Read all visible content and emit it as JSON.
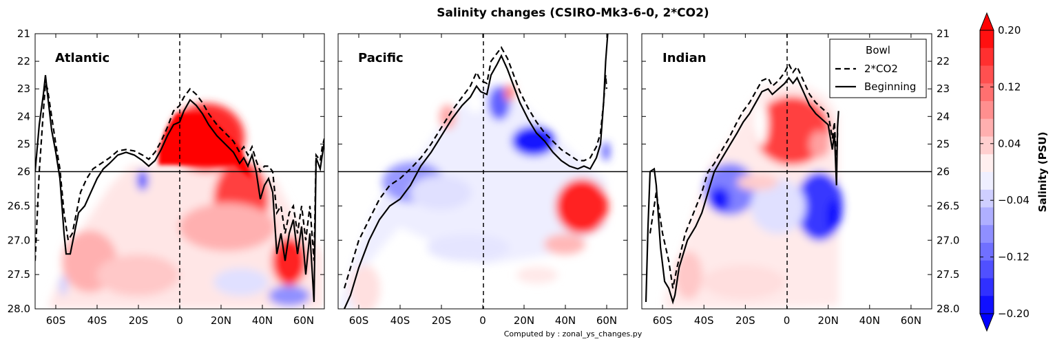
{
  "figure": {
    "title": "Salinity changes (CSIRO-Mk3-6-0, 2*CO2)",
    "footer": "Computed by : zonal_ys_changes.py"
  },
  "chart_data": {
    "type": "heatmap",
    "title": "Salinity changes (CSIRO-Mk3-6-0, 2*CO2)",
    "x_ticks": [
      "60S",
      "40S",
      "20S",
      "0",
      "20N",
      "40N",
      "60N"
    ],
    "x_values": [
      -60,
      -40,
      -20,
      0,
      20,
      40,
      60
    ],
    "xlim": [
      -70,
      70
    ],
    "y_ticks": [
      "21",
      "22",
      "23",
      "24",
      "25",
      "26",
      "26.5",
      "27.0",
      "27.5",
      "28.0"
    ],
    "y_note": "density axis: linear 21-26 (top), stretched 26-28 (bottom)",
    "horizontal_line_y": 26,
    "vertical_dashed_line_x": 0,
    "legend": {
      "title": "Bowl",
      "entries": [
        {
          "label": "2*CO2",
          "style": "dashed"
        },
        {
          "label": "Beginning",
          "style": "solid"
        }
      ],
      "placement": "top-right of Indian panel"
    },
    "colorbar": {
      "label": "Salinity (PSU)",
      "ticks": [
        "0.20",
        "0.12",
        "0.04",
        "−0.04",
        "−0.12",
        "−0.20"
      ],
      "range": [
        -0.2,
        0.2
      ],
      "levels": 16,
      "extend": "both",
      "colormap": "bwr"
    },
    "panels": [
      {
        "name": "Atlantic",
        "bowl_beginning": [
          [
            -70,
            26
          ],
          [
            -68,
            24.3
          ],
          [
            -66,
            23.2
          ],
          [
            -65,
            22.5
          ],
          [
            -64,
            23.2
          ],
          [
            -62,
            24.5
          ],
          [
            -60,
            25.3
          ],
          [
            -58,
            26.1
          ],
          [
            -56,
            26.9
          ],
          [
            -55,
            27.2
          ],
          [
            -53,
            27.2
          ],
          [
            -51,
            26.9
          ],
          [
            -49,
            26.6
          ],
          [
            -46,
            26.5
          ],
          [
            -43,
            26.3
          ],
          [
            -40,
            26.1
          ],
          [
            -37,
            25.9
          ],
          [
            -34,
            25.7
          ],
          [
            -30,
            25.4
          ],
          [
            -26,
            25.3
          ],
          [
            -22,
            25.4
          ],
          [
            -18,
            25.6
          ],
          [
            -15,
            25.8
          ],
          [
            -12,
            25.6
          ],
          [
            -9,
            25.2
          ],
          [
            -6,
            24.7
          ],
          [
            -3,
            24.3
          ],
          [
            0,
            24.2
          ],
          [
            2,
            23.8
          ],
          [
            5,
            23.4
          ],
          [
            8,
            23.6
          ],
          [
            11,
            23.9
          ],
          [
            14,
            24.3
          ],
          [
            18,
            24.7
          ],
          [
            22,
            25.0
          ],
          [
            26,
            25.3
          ],
          [
            29,
            25.7
          ],
          [
            31,
            25.5
          ],
          [
            33,
            25.8
          ],
          [
            35,
            25.4
          ],
          [
            37,
            26.0
          ],
          [
            39,
            26.4
          ],
          [
            41,
            26.2
          ],
          [
            43,
            26.1
          ],
          [
            45,
            26.3
          ],
          [
            47,
            27.2
          ],
          [
            49,
            26.9
          ],
          [
            51,
            27.3
          ],
          [
            53,
            26.9
          ],
          [
            55,
            26.7
          ],
          [
            57,
            27.2
          ],
          [
            59,
            26.8
          ],
          [
            61,
            27.5
          ],
          [
            63,
            26.9
          ],
          [
            65,
            27.9
          ],
          [
            66,
            25.5
          ],
          [
            68,
            25.9
          ],
          [
            69,
            25.4
          ],
          [
            70,
            24.9
          ]
        ],
        "bowl_2co2": [
          [
            -70,
            27.3
          ],
          [
            -68,
            26
          ],
          [
            -66,
            23.8
          ],
          [
            -65,
            22.8
          ],
          [
            -64,
            23.0
          ],
          [
            -62,
            24.0
          ],
          [
            -60,
            25.0
          ],
          [
            -58,
            25.9
          ],
          [
            -56,
            26.6
          ],
          [
            -54,
            27.0
          ],
          [
            -52,
            26.9
          ],
          [
            -50,
            26.6
          ],
          [
            -48,
            26.3
          ],
          [
            -45,
            26.1
          ],
          [
            -42,
            25.9
          ],
          [
            -38,
            25.7
          ],
          [
            -34,
            25.5
          ],
          [
            -30,
            25.25
          ],
          [
            -26,
            25.2
          ],
          [
            -22,
            25.25
          ],
          [
            -18,
            25.4
          ],
          [
            -15,
            25.55
          ],
          [
            -12,
            25.3
          ],
          [
            -9,
            24.9
          ],
          [
            -6,
            24.4
          ],
          [
            -3,
            23.8
          ],
          [
            0,
            23.6
          ],
          [
            2,
            23.3
          ],
          [
            5,
            23.0
          ],
          [
            8,
            23.2
          ],
          [
            11,
            23.5
          ],
          [
            14,
            23.9
          ],
          [
            18,
            24.3
          ],
          [
            22,
            24.6
          ],
          [
            26,
            24.9
          ],
          [
            29,
            25.3
          ],
          [
            31,
            25.1
          ],
          [
            33,
            25.4
          ],
          [
            35,
            25.1
          ],
          [
            37,
            25.6
          ],
          [
            39,
            26.0
          ],
          [
            41,
            25.8
          ],
          [
            43,
            25.8
          ],
          [
            45,
            26.0
          ],
          [
            47,
            26.6
          ],
          [
            49,
            26.5
          ],
          [
            51,
            26.9
          ],
          [
            53,
            26.6
          ],
          [
            55,
            26.5
          ],
          [
            57,
            26.9
          ],
          [
            59,
            26.5
          ],
          [
            61,
            27.0
          ],
          [
            63,
            26.5
          ],
          [
            65,
            27.3
          ],
          [
            66,
            25.4
          ],
          [
            68,
            25.6
          ],
          [
            69,
            25.1
          ],
          [
            70,
            24.8
          ]
        ]
      },
      {
        "name": "Pacific",
        "bowl_beginning": [
          [
            -67,
            28.0
          ],
          [
            -64,
            27.8
          ],
          [
            -60,
            27.4
          ],
          [
            -55,
            27.0
          ],
          [
            -50,
            26.7
          ],
          [
            -45,
            26.5
          ],
          [
            -40,
            26.4
          ],
          [
            -35,
            26.2
          ],
          [
            -30,
            25.8
          ],
          [
            -25,
            25.3
          ],
          [
            -20,
            24.7
          ],
          [
            -15,
            24.1
          ],
          [
            -10,
            23.6
          ],
          [
            -6,
            23.3
          ],
          [
            -3,
            22.9
          ],
          [
            -1,
            23.1
          ],
          [
            2,
            23.2
          ],
          [
            4,
            22.5
          ],
          [
            7,
            22.1
          ],
          [
            9,
            21.8
          ],
          [
            12,
            22.3
          ],
          [
            15,
            22.9
          ],
          [
            18,
            23.5
          ],
          [
            22,
            24.1
          ],
          [
            26,
            24.6
          ],
          [
            30,
            24.9
          ],
          [
            34,
            25.3
          ],
          [
            38,
            25.6
          ],
          [
            42,
            25.8
          ],
          [
            46,
            25.9
          ],
          [
            49,
            25.8
          ],
          [
            52,
            25.9
          ],
          [
            55,
            25.5
          ],
          [
            57,
            25.0
          ],
          [
            58.5,
            23.5
          ],
          [
            59.5,
            22.0
          ],
          [
            60.5,
            21.0
          ]
        ],
        "bowl_2co2": [
          [
            -67,
            27.7
          ],
          [
            -64,
            27.4
          ],
          [
            -60,
            27.0
          ],
          [
            -55,
            26.7
          ],
          [
            -50,
            26.4
          ],
          [
            -45,
            26.2
          ],
          [
            -40,
            26.1
          ],
          [
            -35,
            25.9
          ],
          [
            -30,
            25.5
          ],
          [
            -25,
            25.0
          ],
          [
            -20,
            24.4
          ],
          [
            -15,
            23.8
          ],
          [
            -10,
            23.3
          ],
          [
            -6,
            22.9
          ],
          [
            -3,
            22.4
          ],
          [
            -1,
            22.7
          ],
          [
            2,
            22.8
          ],
          [
            4,
            22.0
          ],
          [
            7,
            21.7
          ],
          [
            9,
            21.5
          ],
          [
            12,
            21.9
          ],
          [
            15,
            22.5
          ],
          [
            18,
            23.1
          ],
          [
            22,
            23.7
          ],
          [
            26,
            24.2
          ],
          [
            30,
            24.6
          ],
          [
            34,
            24.9
          ],
          [
            38,
            25.2
          ],
          [
            42,
            25.4
          ],
          [
            46,
            25.6
          ],
          [
            49,
            25.6
          ],
          [
            52,
            25.5
          ],
          [
            55,
            25.1
          ],
          [
            57,
            24.6
          ],
          [
            58.5,
            23.5
          ],
          [
            59.5,
            22.5
          ],
          [
            60,
            23.0
          ]
        ]
      },
      {
        "name": "Indian",
        "bowl_beginning": [
          [
            -68,
            27.9
          ],
          [
            -67,
            26.8
          ],
          [
            -66,
            26.0
          ],
          [
            -64,
            25.9
          ],
          [
            -63,
            26.2
          ],
          [
            -61,
            27.1
          ],
          [
            -59,
            27.6
          ],
          [
            -57,
            27.7
          ],
          [
            -55,
            27.9
          ],
          [
            -54,
            27.8
          ],
          [
            -52,
            27.4
          ],
          [
            -48,
            27.0
          ],
          [
            -44,
            26.8
          ],
          [
            -41,
            26.6
          ],
          [
            -38,
            26.3
          ],
          [
            -35,
            26.0
          ],
          [
            -32,
            25.6
          ],
          [
            -28,
            25.1
          ],
          [
            -24,
            24.6
          ],
          [
            -21,
            24.2
          ],
          [
            -18,
            23.9
          ],
          [
            -15,
            23.5
          ],
          [
            -12,
            23.1
          ],
          [
            -9,
            23.0
          ],
          [
            -7,
            23.2
          ],
          [
            -4,
            23.0
          ],
          [
            -1,
            22.8
          ],
          [
            1,
            22.6
          ],
          [
            3,
            22.8
          ],
          [
            5,
            22.6
          ],
          [
            8,
            23.1
          ],
          [
            11,
            23.6
          ],
          [
            14,
            23.9
          ],
          [
            17,
            24.1
          ],
          [
            20,
            24.3
          ],
          [
            22,
            25.2
          ],
          [
            23,
            24.6
          ],
          [
            24,
            26.2
          ],
          [
            24.5,
            24.4
          ],
          [
            25,
            23.8
          ]
        ],
        "bowl_2co2": [
          [
            -66,
            26.9
          ],
          [
            -63,
            26.3
          ],
          [
            -60,
            26.9
          ],
          [
            -57,
            27.3
          ],
          [
            -55,
            27.7
          ],
          [
            -53,
            27.4
          ],
          [
            -49,
            26.9
          ],
          [
            -45,
            26.6
          ],
          [
            -41,
            26.3
          ],
          [
            -38,
            26.0
          ],
          [
            -35,
            25.7
          ],
          [
            -32,
            25.3
          ],
          [
            -28,
            24.8
          ],
          [
            -24,
            24.2
          ],
          [
            -21,
            23.8
          ],
          [
            -18,
            23.5
          ],
          [
            -15,
            23.1
          ],
          [
            -12,
            22.7
          ],
          [
            -9,
            22.6
          ],
          [
            -7,
            22.9
          ],
          [
            -4,
            22.7
          ],
          [
            -1,
            22.4
          ],
          [
            1,
            22.1
          ],
          [
            3,
            22.4
          ],
          [
            5,
            22.2
          ],
          [
            8,
            22.7
          ],
          [
            11,
            23.2
          ],
          [
            14,
            23.5
          ],
          [
            17,
            23.7
          ],
          [
            20,
            23.9
          ],
          [
            22,
            24.8
          ],
          [
            23,
            24.2
          ],
          [
            24,
            25.8
          ],
          [
            24.5,
            24.6
          ]
        ]
      }
    ]
  }
}
